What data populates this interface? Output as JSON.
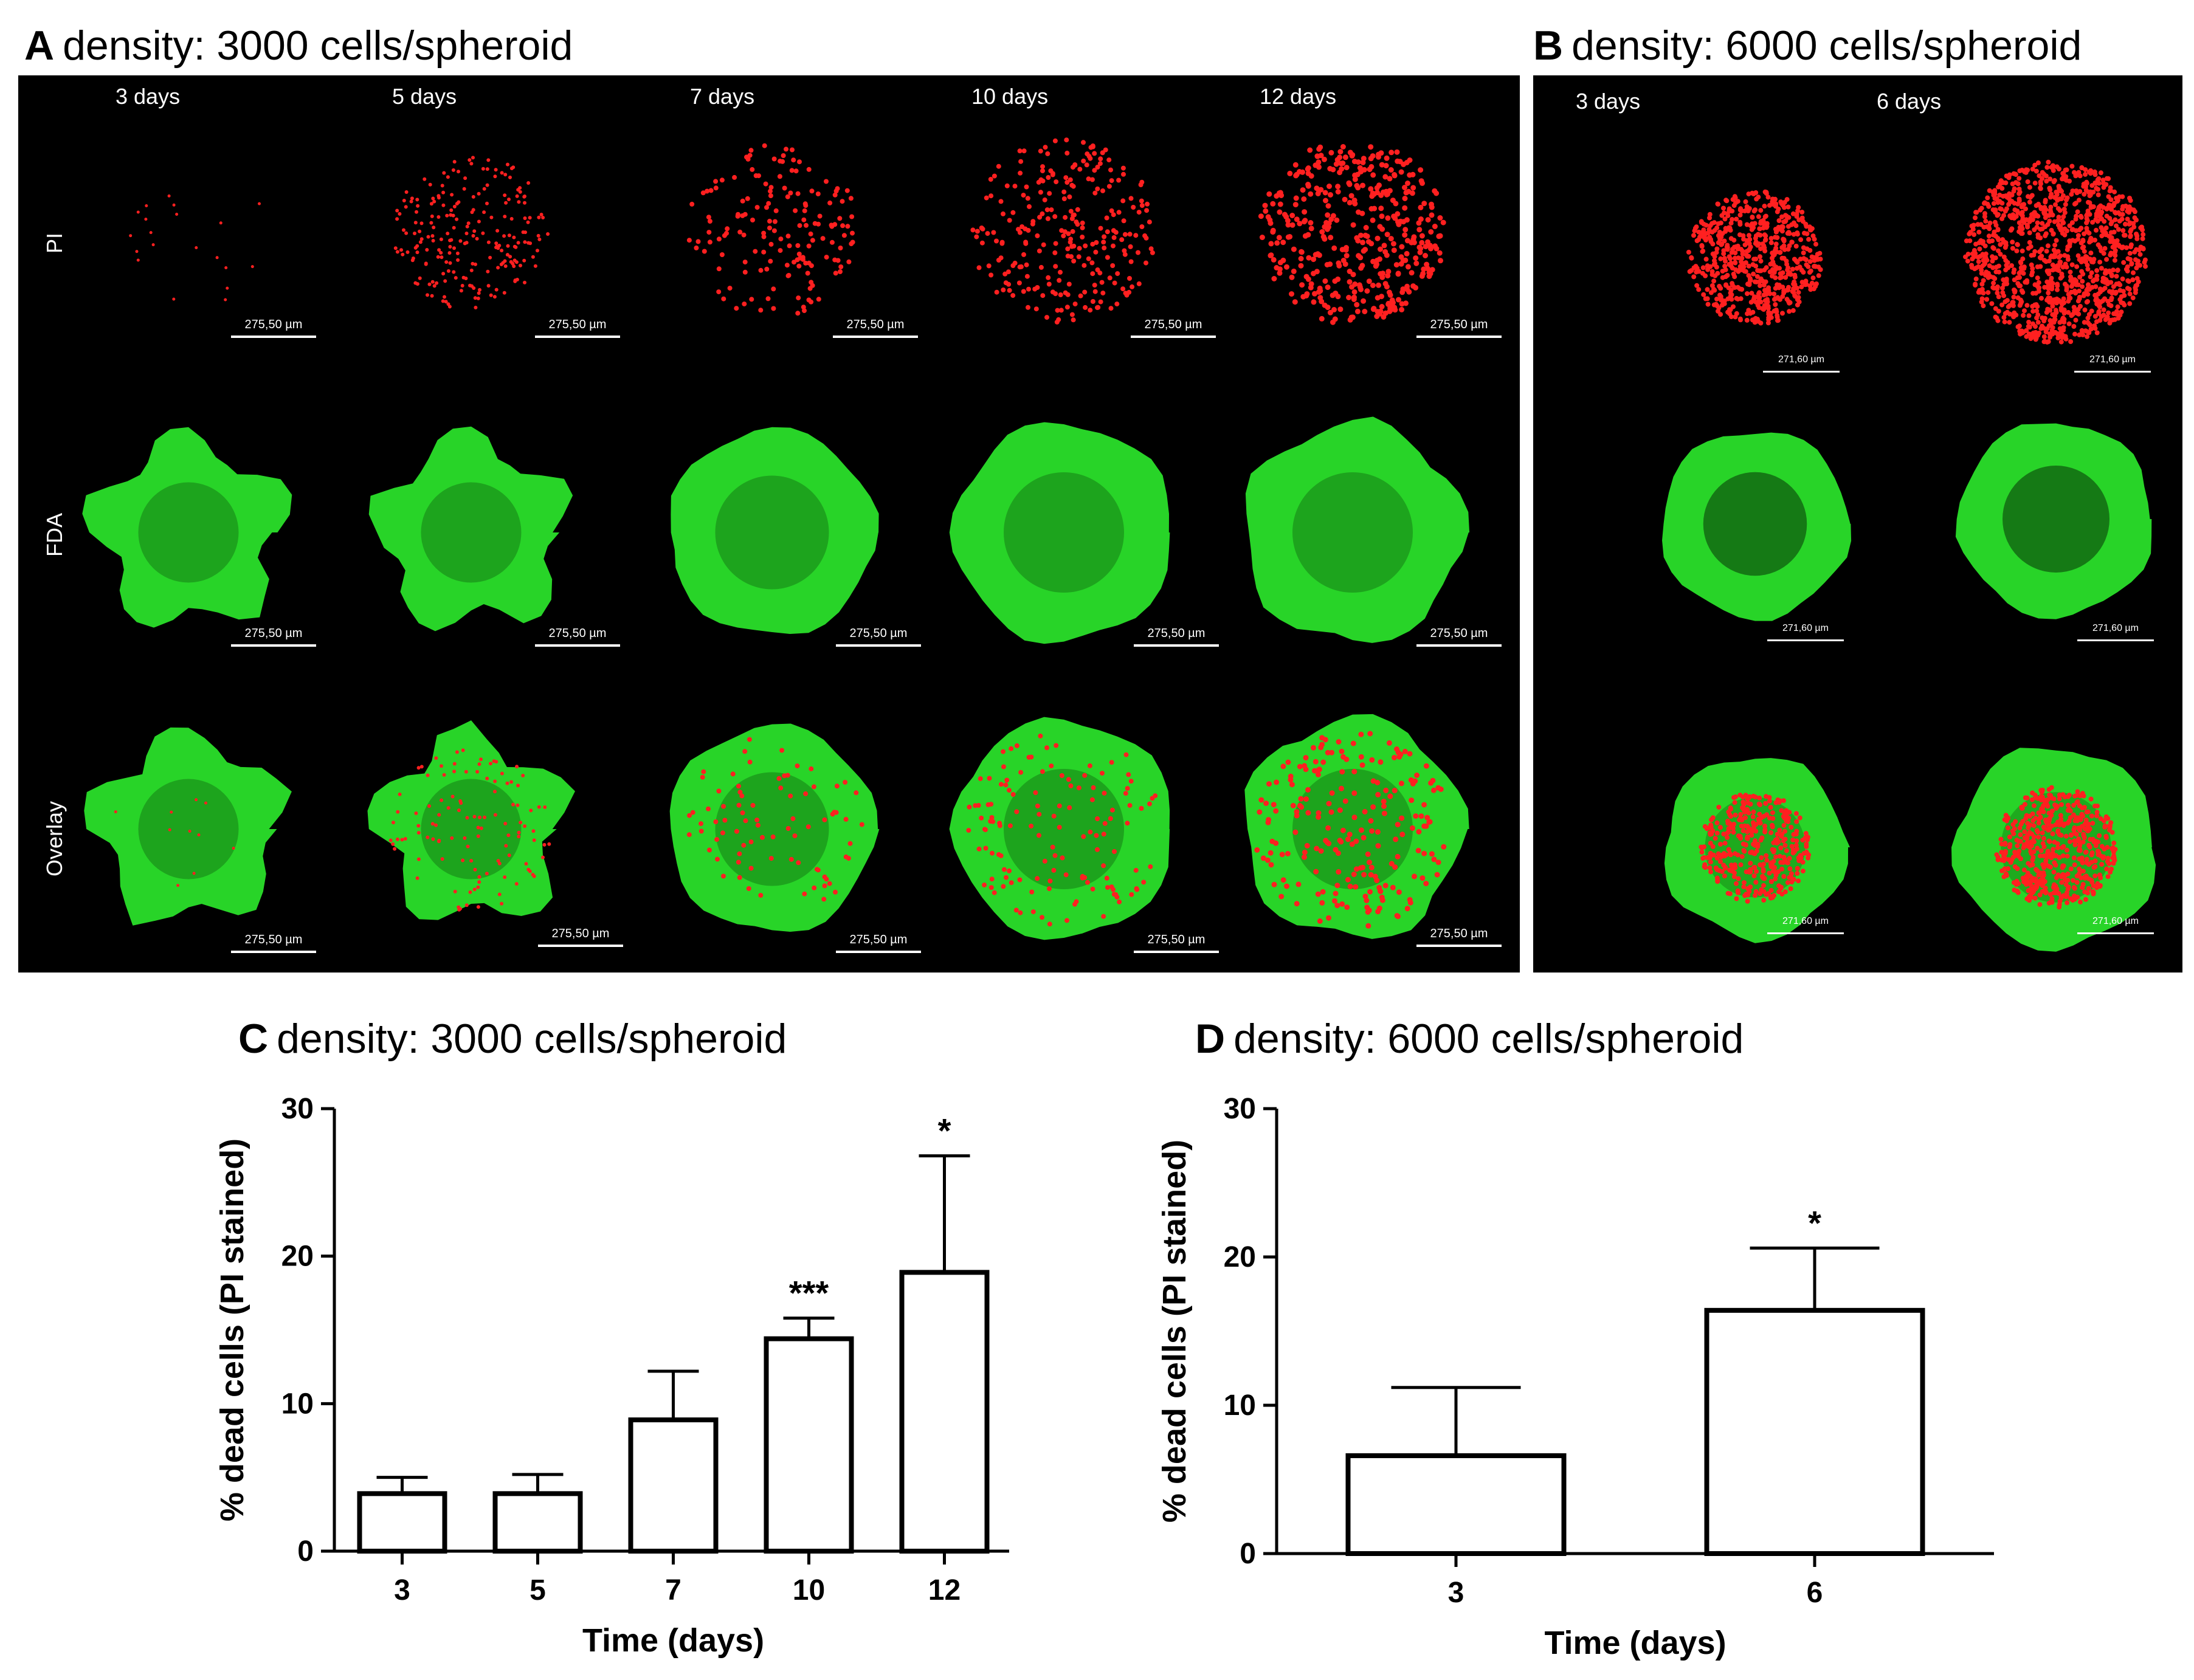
{
  "panel_a": {
    "letter": "A",
    "title": "density: 3000 cells/spheroid",
    "days": [
      "3 days",
      "5 days",
      "7 days",
      "10 days",
      "12 days"
    ],
    "rows": [
      "PI",
      "FDA",
      "Overlay"
    ],
    "scale": "275,50 µm"
  },
  "panel_b": {
    "letter": "B",
    "title": "density: 6000 cells/spheroid",
    "days": [
      "3 days",
      "6 days"
    ],
    "scale": "271,60 µm"
  },
  "panel_c": {
    "letter": "C",
    "title": "density: 3000 cells/spheroid"
  },
  "panel_d": {
    "letter": "D",
    "title": "density: 6000 cells/spheroid"
  },
  "colors": {
    "pi": "#ff2020",
    "fda": "#28d428",
    "background": "#000000"
  },
  "chart_data": [
    {
      "type": "bar",
      "categories": [
        "3",
        "5",
        "7",
        "10",
        "12"
      ],
      "values": [
        3.9,
        3.9,
        8.9,
        14.4,
        18.9
      ],
      "errors": [
        1.1,
        1.3,
        3.3,
        1.4,
        7.9
      ],
      "significance": [
        "",
        "",
        "",
        "***",
        "*"
      ],
      "xlabel": "Time (days)",
      "ylabel": "% dead cells (PI stained)",
      "ylim": [
        0,
        30
      ],
      "yticks": [
        "0",
        "10",
        "20",
        "30"
      ]
    },
    {
      "type": "bar",
      "categories": [
        "3",
        "6"
      ],
      "values": [
        6.6,
        16.4
      ],
      "errors": [
        4.6,
        4.2
      ],
      "significance": [
        "",
        "*"
      ],
      "xlabel": "Time (days)",
      "ylabel": "% dead cells (PI stained)",
      "ylim": [
        0,
        30
      ],
      "yticks": [
        "0",
        "10",
        "20",
        "30"
      ]
    }
  ]
}
